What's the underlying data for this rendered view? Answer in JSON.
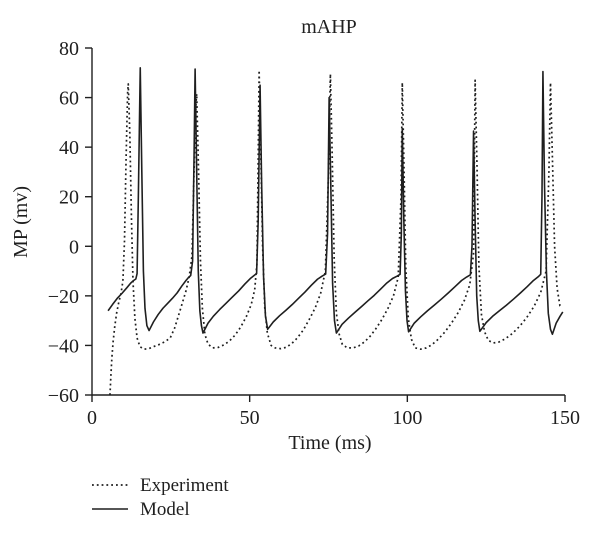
{
  "figure": {
    "background": "#ffffff",
    "line_color": "#1f1f1f"
  },
  "chart_data": {
    "type": "line",
    "title": "mAHP",
    "xlabel": "Time (ms)",
    "ylabel": "MP (mv)",
    "xlim": [
      0,
      150
    ],
    "ylim": [
      -60,
      80
    ],
    "grid": false,
    "legend_position": "below-left",
    "x_ticks": [
      {
        "v": 0,
        "label": "0"
      },
      {
        "v": 50,
        "label": "50"
      },
      {
        "v": 100,
        "label": "100"
      },
      {
        "v": 150,
        "label": "150"
      }
    ],
    "y_ticks": [
      {
        "v": 80,
        "label": "80"
      },
      {
        "v": 60,
        "label": "60"
      },
      {
        "v": 40,
        "label": "40"
      },
      {
        "v": 20,
        "label": "20"
      },
      {
        "v": 0,
        "label": "0"
      },
      {
        "v": -20,
        "label": "-20"
      },
      {
        "v": -40,
        "label": "-40"
      },
      {
        "v": -60,
        "label": "-60"
      }
    ],
    "series": [
      {
        "name": "Experiment",
        "style": "dotted",
        "points": [
          [
            5.7,
            -60
          ],
          [
            6.0,
            -52
          ],
          [
            6.3,
            -45
          ],
          [
            6.7,
            -38.5
          ],
          [
            7.2,
            -32.5
          ],
          [
            7.8,
            -27
          ],
          [
            8.5,
            -22.5
          ],
          [
            9.2,
            -19
          ],
          [
            9.8,
            -14
          ],
          [
            10.3,
            2
          ],
          [
            10.8,
            35
          ],
          [
            11.3,
            62
          ],
          [
            11.5,
            65.5
          ],
          [
            12.0,
            45
          ],
          [
            12.5,
            12
          ],
          [
            13.0,
            -14
          ],
          [
            13.6,
            -29
          ],
          [
            14.3,
            -37
          ],
          [
            15.2,
            -40.5
          ],
          [
            16.5,
            -41.5
          ],
          [
            18,
            -41.3
          ],
          [
            19.5,
            -40.5
          ],
          [
            21,
            -39.8
          ],
          [
            23,
            -38.6
          ],
          [
            24.8,
            -37
          ],
          [
            26.2,
            -33
          ],
          [
            27.3,
            -28.5
          ],
          [
            28.5,
            -23.5
          ],
          [
            29.8,
            -18
          ],
          [
            30.8,
            -12.5
          ],
          [
            31.7,
            -4
          ],
          [
            32.4,
            32
          ],
          [
            33.0,
            58
          ],
          [
            33.2,
            61.5
          ],
          [
            33.8,
            30
          ],
          [
            34.4,
            -6
          ],
          [
            35.0,
            -25
          ],
          [
            35.8,
            -35.5
          ],
          [
            36.8,
            -39.5
          ],
          [
            38.3,
            -41
          ],
          [
            40,
            -40.8
          ],
          [
            41.8,
            -39.8
          ],
          [
            43.6,
            -38.2
          ],
          [
            45.4,
            -35.8
          ],
          [
            47.2,
            -32.5
          ],
          [
            49,
            -28.2
          ],
          [
            50.5,
            -23.5
          ],
          [
            51.6,
            -17.5
          ],
          [
            52.3,
            -7
          ],
          [
            52.7,
            35
          ],
          [
            53.0,
            71
          ],
          [
            53.5,
            40
          ],
          [
            54.1,
            0
          ],
          [
            54.8,
            -25
          ],
          [
            55.6,
            -35
          ],
          [
            56.8,
            -40
          ],
          [
            58.1,
            -41
          ],
          [
            59.8,
            -41.3
          ],
          [
            61.5,
            -40.8
          ],
          [
            63.3,
            -39.3
          ],
          [
            65.1,
            -37
          ],
          [
            67,
            -33.8
          ],
          [
            68.9,
            -29.5
          ],
          [
            70.8,
            -24.8
          ],
          [
            72.5,
            -19
          ],
          [
            74,
            -10
          ],
          [
            74.9,
            25
          ],
          [
            75.6,
            69.5
          ],
          [
            76.2,
            35
          ],
          [
            76.8,
            -5
          ],
          [
            77.5,
            -27
          ],
          [
            78.4,
            -35.5
          ],
          [
            79.4,
            -39.6
          ],
          [
            81,
            -41
          ],
          [
            82.8,
            -41
          ],
          [
            84.6,
            -40.2
          ],
          [
            86.4,
            -38.6
          ],
          [
            88.2,
            -36.3
          ],
          [
            90,
            -33.3
          ],
          [
            91.9,
            -29.6
          ],
          [
            93.8,
            -25.2
          ],
          [
            95.6,
            -20
          ],
          [
            97.1,
            -12.5
          ],
          [
            98,
            20
          ],
          [
            98.4,
            66
          ],
          [
            98.9,
            35
          ],
          [
            99.5,
            -8
          ],
          [
            100.3,
            -29
          ],
          [
            101.3,
            -37.5
          ],
          [
            102.5,
            -41
          ],
          [
            104.2,
            -41.5
          ],
          [
            106,
            -41
          ],
          [
            107.8,
            -39.7
          ],
          [
            109.8,
            -37.5
          ],
          [
            111.9,
            -34.6
          ],
          [
            114,
            -31
          ],
          [
            116.1,
            -26.8
          ],
          [
            118.1,
            -21.8
          ],
          [
            119.8,
            -15.5
          ],
          [
            121,
            -3
          ],
          [
            121.5,
            67
          ],
          [
            122.1,
            32
          ],
          [
            122.7,
            -8
          ],
          [
            123.5,
            -27.5
          ],
          [
            124.5,
            -34.5
          ],
          [
            125.7,
            -38
          ],
          [
            127.3,
            -39
          ],
          [
            129.1,
            -38.6
          ],
          [
            131.1,
            -37.3
          ],
          [
            133.3,
            -35.2
          ],
          [
            135.6,
            -32.3
          ],
          [
            137.9,
            -28.7
          ],
          [
            140.2,
            -24.2
          ],
          [
            142.3,
            -18.6
          ],
          [
            144,
            -10
          ],
          [
            144.9,
            30
          ],
          [
            145.4,
            66
          ],
          [
            146.0,
            36
          ],
          [
            146.7,
            0
          ],
          [
            147.5,
            -17
          ],
          [
            148.4,
            -24
          ],
          [
            149.3,
            -24.5
          ]
        ]
      },
      {
        "name": "Model",
        "style": "solid",
        "points": [
          [
            5.1,
            -26
          ],
          [
            6.5,
            -23.5
          ],
          [
            8,
            -21
          ],
          [
            9.5,
            -19
          ],
          [
            11,
            -16.8
          ],
          [
            12.3,
            -14.8
          ],
          [
            13.2,
            -13.8
          ],
          [
            13.9,
            -13.2
          ],
          [
            14.3,
            -11
          ],
          [
            14.7,
            20
          ],
          [
            15.3,
            72
          ],
          [
            15.8,
            30
          ],
          [
            16.3,
            -10
          ],
          [
            16.8,
            -25
          ],
          [
            17.4,
            -32
          ],
          [
            18.1,
            -34
          ],
          [
            19.5,
            -30.5
          ],
          [
            21,
            -27.5
          ],
          [
            22.5,
            -25
          ],
          [
            24,
            -23
          ],
          [
            25.5,
            -21
          ],
          [
            27,
            -18.8
          ],
          [
            28.5,
            -16
          ],
          [
            29.8,
            -13.8
          ],
          [
            30.6,
            -12.6
          ],
          [
            31.3,
            -11.8
          ],
          [
            31.9,
            -6
          ],
          [
            32.4,
            40
          ],
          [
            32.7,
            71.5
          ],
          [
            33.2,
            30
          ],
          [
            33.7,
            -10
          ],
          [
            34.2,
            -26
          ],
          [
            34.7,
            -32
          ],
          [
            35.2,
            -35
          ],
          [
            36.8,
            -31
          ],
          [
            38.5,
            -28.2
          ],
          [
            40.5,
            -25.5
          ],
          [
            42.5,
            -23
          ],
          [
            44.5,
            -20.5
          ],
          [
            46.5,
            -18
          ],
          [
            48.5,
            -15.2
          ],
          [
            50.2,
            -13
          ],
          [
            51.4,
            -11.8
          ],
          [
            52.2,
            -11
          ],
          [
            52.7,
            10
          ],
          [
            53.3,
            65
          ],
          [
            53.8,
            25
          ],
          [
            54.4,
            -12
          ],
          [
            55.0,
            -28
          ],
          [
            55.7,
            -33.5
          ],
          [
            57.5,
            -30.5
          ],
          [
            59.5,
            -28
          ],
          [
            61.5,
            -25.8
          ],
          [
            63.5,
            -23.5
          ],
          [
            65.5,
            -21
          ],
          [
            67.5,
            -18.5
          ],
          [
            69.5,
            -15.8
          ],
          [
            71.5,
            -13.3
          ],
          [
            73,
            -12
          ],
          [
            74.1,
            -11.2
          ],
          [
            74.7,
            5
          ],
          [
            75.2,
            60
          ],
          [
            75.8,
            20
          ],
          [
            76.3,
            -15
          ],
          [
            76.9,
            -30
          ],
          [
            77.5,
            -35
          ],
          [
            79.3,
            -31.5
          ],
          [
            81.3,
            -29
          ],
          [
            83.5,
            -26.5
          ],
          [
            85.5,
            -24.3
          ],
          [
            87.5,
            -22
          ],
          [
            89.5,
            -19.8
          ],
          [
            91.5,
            -17.3
          ],
          [
            93.5,
            -14.8
          ],
          [
            95.3,
            -13
          ],
          [
            96.8,
            -12
          ],
          [
            97.7,
            -11.3
          ],
          [
            98.1,
            5
          ],
          [
            98.4,
            47.5
          ],
          [
            98.9,
            10
          ],
          [
            99.4,
            -18
          ],
          [
            99.9,
            -30
          ],
          [
            100.4,
            -34.5
          ],
          [
            102.2,
            -31
          ],
          [
            104.2,
            -28.5
          ],
          [
            106.4,
            -26
          ],
          [
            108.6,
            -23.7
          ],
          [
            110.8,
            -21.3
          ],
          [
            113,
            -18.8
          ],
          [
            115.2,
            -16.2
          ],
          [
            117.2,
            -13.8
          ],
          [
            118.8,
            -12.4
          ],
          [
            120,
            -11.5
          ],
          [
            120.5,
            0
          ],
          [
            121,
            46.5
          ],
          [
            121.5,
            10
          ],
          [
            122,
            -20
          ],
          [
            122.5,
            -30
          ],
          [
            123,
            -34.3
          ],
          [
            125,
            -30.8
          ],
          [
            127,
            -28.3
          ],
          [
            129.2,
            -26
          ],
          [
            131.4,
            -23.8
          ],
          [
            133.6,
            -21.4
          ],
          [
            135.8,
            -18.9
          ],
          [
            138,
            -16.3
          ],
          [
            140,
            -13.8
          ],
          [
            141.5,
            -12.3
          ],
          [
            142.3,
            -11.3
          ],
          [
            142.7,
            20
          ],
          [
            143,
            70.5
          ],
          [
            143.5,
            25
          ],
          [
            144.1,
            -10
          ],
          [
            144.7,
            -27
          ],
          [
            145.4,
            -33.5
          ],
          [
            146,
            -35.5
          ],
          [
            147.2,
            -31
          ],
          [
            148.4,
            -28.3
          ],
          [
            149.3,
            -26.5
          ]
        ]
      }
    ]
  }
}
